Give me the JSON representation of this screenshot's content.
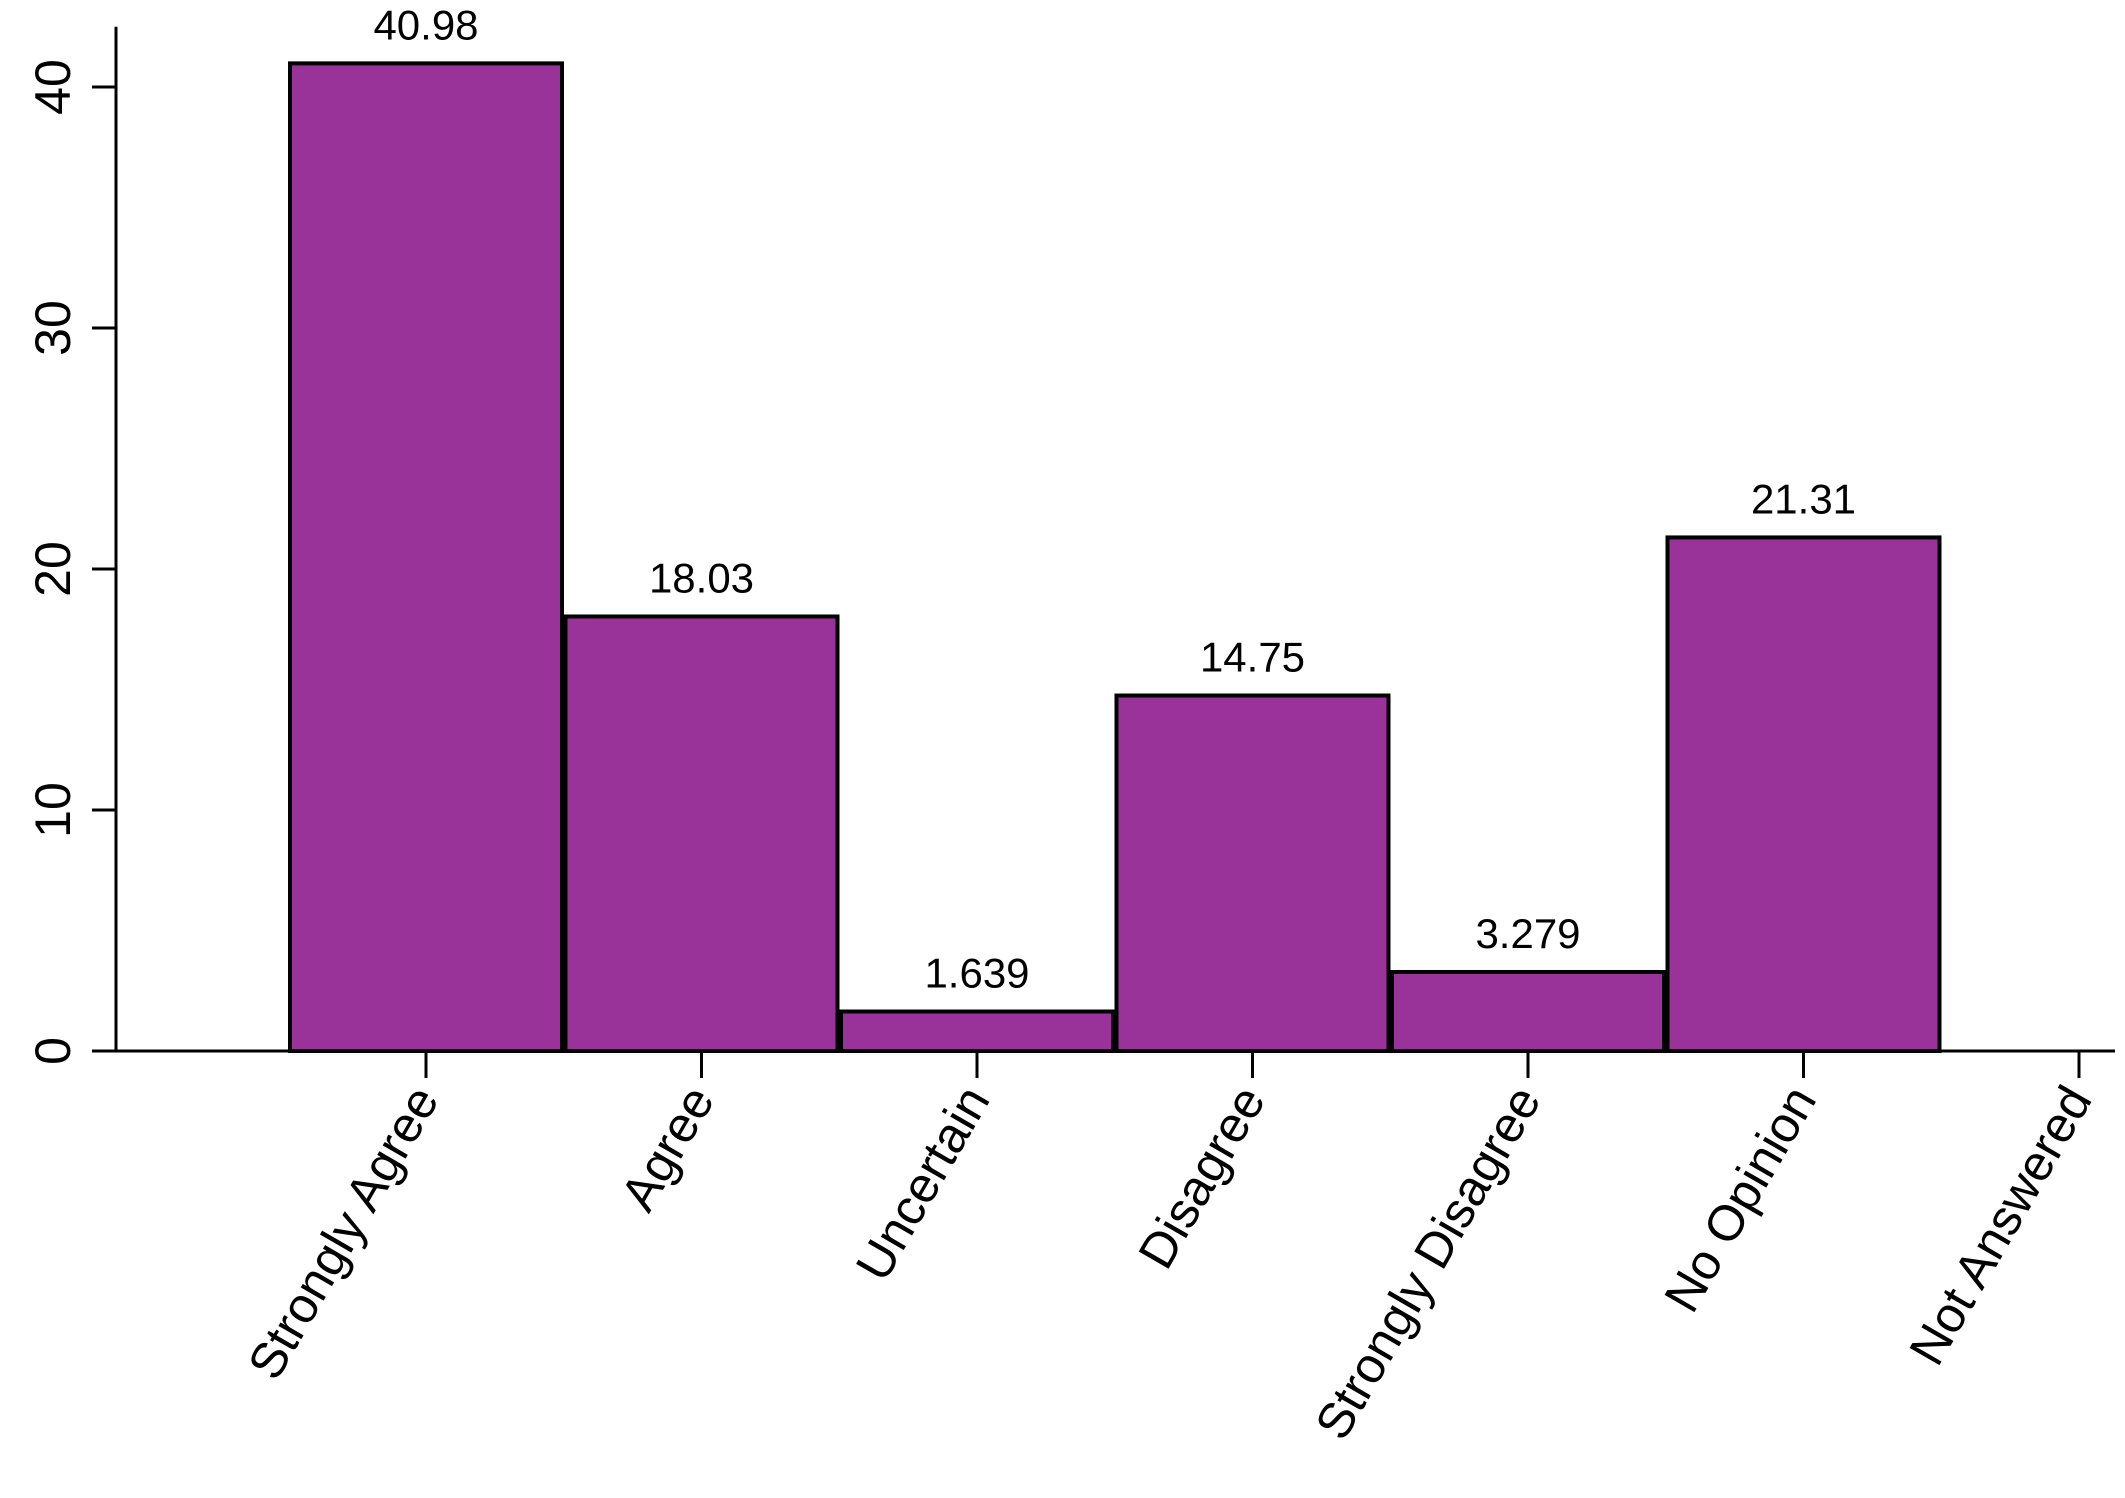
{
  "chart_data": {
    "type": "bar",
    "title": "",
    "xlabel": "",
    "ylabel": "",
    "categories": [
      "Strongly Agree",
      "Agree",
      "Uncertain",
      "Disagree",
      "Strongly Disagree",
      "No Opinion",
      "Not Answered"
    ],
    "values": [
      40.98,
      18.03,
      1.639,
      14.75,
      3.279,
      21.31,
      null
    ],
    "value_labels": [
      "40.98",
      "18.03",
      "1.639",
      "14.75",
      "3.279",
      "21.31",
      ""
    ],
    "ylim": [
      0,
      42.5
    ],
    "yticks": [
      0,
      10,
      20,
      30,
      40
    ],
    "ytick_labels": [
      "0",
      "10",
      "20",
      "30",
      "40"
    ],
    "bar_color": "#993399",
    "edge_color": "#000000",
    "grid": false,
    "legend": "none"
  }
}
